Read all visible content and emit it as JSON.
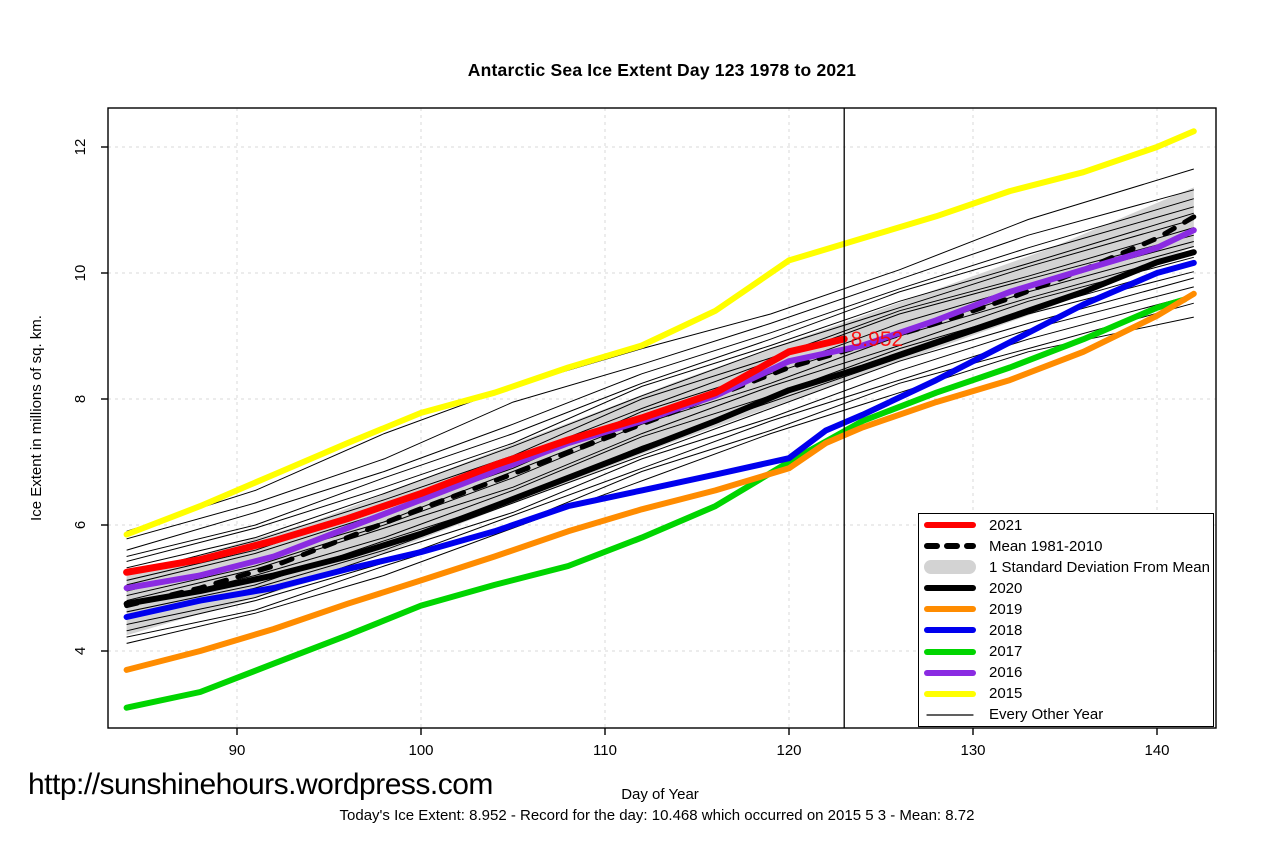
{
  "title": "Antarctic Sea Ice Extent Day 123 1978 to 2021",
  "ylabel": "Ice Extent in millions of sq. km.",
  "footer": {
    "url": "http://sunshinehours.wordpress.com",
    "xlabel": "Day of Year",
    "status": "Today's Ice Extent: 8.952  - Record for the day: 10.468 which occurred on 2015 5 3  - Mean: 8.72"
  },
  "colors": {
    "band": "#D3D3D3",
    "grid": "#D9D9D9",
    "axis": "#000000",
    "annotation_red": "#FF0000"
  },
  "chart_data": {
    "type": "line",
    "title": "Antarctic Sea Ice Extent Day 123 1978 to 2021",
    "xlabel": "Day of Year",
    "ylabel": "Ice Extent in millions of sq. km.",
    "xlim": [
      83,
      143.2
    ],
    "ylim": [
      2.73,
      12.62
    ],
    "xticks": [
      90,
      100,
      110,
      120,
      130,
      140
    ],
    "yticks": [
      4,
      6,
      8,
      10,
      12
    ],
    "grid": "dashed",
    "legend_position": "bottom-right",
    "marker_line_x": 123,
    "annotation": {
      "text": "8.952",
      "x": 123.35,
      "y": 8.95,
      "color": "#FF0000"
    },
    "band": {
      "name": "1 Standard Deviation From Mean",
      "color": "#D3D3D3",
      "days": [
        84,
        94,
        104,
        114,
        124,
        134,
        142
      ],
      "upper": [
        5.19,
        6.04,
        7.17,
        8.29,
        9.32,
        10.37,
        11.36
      ],
      "lower": [
        4.25,
        5.1,
        6.23,
        7.35,
        8.38,
        9.43,
        10.42
      ]
    },
    "mean": {
      "name": "Mean 1981-2010",
      "color": "#000000",
      "style": "dashed",
      "days": [
        84,
        88,
        92,
        96,
        100,
        104,
        108,
        112,
        116,
        120,
        124,
        128,
        132,
        136,
        140,
        142
      ],
      "values": [
        4.72,
        5.0,
        5.35,
        5.8,
        6.26,
        6.7,
        7.15,
        7.6,
        8.05,
        8.5,
        8.85,
        9.2,
        9.6,
        10.05,
        10.55,
        10.89
      ]
    },
    "series": [
      {
        "name": "2015",
        "color": "#FFFF00",
        "width": 6,
        "days": [
          84,
          88,
          92,
          96,
          100,
          104,
          108,
          112,
          116,
          120,
          124,
          128,
          132,
          136,
          140,
          142
        ],
        "values": [
          5.85,
          6.3,
          6.8,
          7.3,
          7.78,
          8.1,
          8.5,
          8.85,
          9.4,
          10.2,
          10.55,
          10.9,
          11.3,
          11.6,
          12.0,
          12.25
        ]
      },
      {
        "name": "2020",
        "color": "#000000",
        "width": 6,
        "days": [
          84,
          88,
          92,
          96,
          100,
          104,
          108,
          112,
          116,
          120,
          124,
          128,
          132,
          136,
          140,
          142
        ],
        "values": [
          4.75,
          4.95,
          5.2,
          5.5,
          5.86,
          6.3,
          6.75,
          7.2,
          7.65,
          8.14,
          8.5,
          8.9,
          9.3,
          9.7,
          10.17,
          10.33
        ]
      },
      {
        "name": "2016",
        "color": "#8A2BE2",
        "width": 6,
        "days": [
          84,
          88,
          92,
          96,
          100,
          104,
          108,
          112,
          116,
          120,
          124,
          128,
          132,
          136,
          140,
          142
        ],
        "values": [
          5.0,
          5.2,
          5.5,
          5.95,
          6.4,
          6.85,
          7.3,
          7.65,
          8.05,
          8.6,
          8.85,
          9.25,
          9.7,
          10.05,
          10.4,
          10.68
        ]
      },
      {
        "name": "2017",
        "color": "#00D500",
        "width": 6,
        "days": [
          84,
          88,
          92,
          96,
          100,
          104,
          108,
          112,
          116,
          120,
          124,
          128,
          132,
          136,
          140,
          141.5
        ],
        "values": [
          3.1,
          3.35,
          3.8,
          4.25,
          4.72,
          5.05,
          5.35,
          5.8,
          6.3,
          7.0,
          7.65,
          8.1,
          8.5,
          8.95,
          9.45,
          9.58
        ]
      },
      {
        "name": "2018",
        "color": "#0000EE",
        "width": 6,
        "days": [
          84,
          88,
          92,
          96,
          100,
          104,
          108,
          112,
          116,
          120,
          122,
          124,
          128,
          132,
          136,
          140,
          142
        ],
        "values": [
          4.54,
          4.8,
          5.0,
          5.3,
          5.57,
          5.9,
          6.3,
          6.55,
          6.8,
          7.06,
          7.5,
          7.75,
          8.3,
          8.9,
          9.5,
          10.0,
          10.16
        ]
      },
      {
        "name": "2019",
        "color": "#FF8C00",
        "width": 6,
        "days": [
          84,
          88,
          92,
          96,
          100,
          104,
          108,
          112,
          116,
          120,
          122,
          124,
          128,
          132,
          136,
          140,
          142
        ],
        "values": [
          3.7,
          4.0,
          4.35,
          4.75,
          5.12,
          5.5,
          5.9,
          6.25,
          6.55,
          6.9,
          7.3,
          7.55,
          7.95,
          8.3,
          8.75,
          9.32,
          9.67
        ]
      },
      {
        "name": "2021",
        "color": "#FF0000",
        "width": 7,
        "days": [
          84,
          88,
          92,
          96,
          100,
          104,
          108,
          112,
          116,
          120,
          123
        ],
        "values": [
          5.25,
          5.45,
          5.75,
          6.1,
          6.5,
          6.95,
          7.35,
          7.7,
          8.1,
          8.75,
          8.952
        ]
      }
    ],
    "every_other_year": {
      "name": "Every Other Year",
      "color": "#000000",
      "width": 1,
      "days": [
        84,
        91,
        98,
        105,
        112,
        119,
        126,
        133,
        142
      ],
      "lines": [
        [
          5.9,
          6.55,
          7.45,
          8.2,
          8.8,
          9.35,
          10.05,
          10.85,
          11.65
        ],
        [
          5.78,
          6.35,
          7.05,
          7.95,
          8.55,
          9.2,
          9.9,
          10.6,
          11.32
        ],
        [
          5.6,
          6.2,
          6.85,
          7.6,
          8.4,
          9.05,
          9.75,
          10.4,
          11.18
        ],
        [
          5.5,
          6.0,
          6.75,
          7.45,
          8.25,
          8.95,
          9.7,
          10.3,
          11.05
        ],
        [
          5.42,
          5.95,
          6.6,
          7.3,
          8.2,
          8.85,
          9.55,
          10.15,
          10.95
        ],
        [
          5.32,
          5.8,
          6.5,
          7.25,
          8.05,
          8.8,
          9.45,
          10.1,
          10.85
        ],
        [
          5.22,
          5.75,
          6.4,
          7.1,
          8.0,
          8.65,
          9.4,
          9.95,
          10.72
        ],
        [
          5.12,
          5.6,
          6.3,
          7.05,
          7.85,
          8.6,
          9.35,
          9.9,
          10.6
        ],
        [
          5.05,
          5.55,
          6.2,
          6.9,
          7.8,
          8.45,
          9.2,
          9.8,
          10.5
        ],
        [
          4.95,
          5.45,
          6.05,
          6.85,
          7.65,
          8.4,
          9.05,
          9.7,
          10.42
        ],
        [
          4.88,
          5.35,
          6.0,
          6.75,
          7.6,
          8.25,
          9.0,
          9.6,
          10.33
        ],
        [
          4.8,
          5.3,
          5.95,
          6.6,
          7.45,
          8.2,
          8.85,
          9.55,
          10.25
        ],
        [
          4.7,
          5.2,
          5.8,
          6.55,
          7.4,
          8.05,
          8.8,
          9.4,
          10.15
        ],
        [
          4.62,
          5.05,
          5.75,
          6.4,
          7.25,
          7.95,
          8.65,
          9.35,
          10.02
        ],
        [
          4.52,
          5.0,
          5.6,
          6.35,
          7.1,
          7.85,
          8.6,
          9.2,
          9.92
        ],
        [
          4.42,
          4.85,
          5.55,
          6.2,
          7.05,
          7.7,
          8.45,
          9.1,
          9.78
        ],
        [
          4.32,
          4.8,
          5.4,
          6.15,
          6.9,
          7.65,
          8.3,
          8.95,
          9.65
        ],
        [
          4.22,
          4.65,
          5.35,
          6.0,
          6.85,
          7.5,
          8.25,
          8.8,
          9.52
        ],
        [
          4.12,
          4.6,
          5.2,
          5.95,
          6.7,
          7.45,
          8.1,
          8.75,
          9.3
        ]
      ]
    },
    "legend": {
      "items": [
        {
          "label": "2021",
          "type": "thick",
          "color": "#FF0000"
        },
        {
          "label": "Mean 1981-2010",
          "type": "dashed",
          "color": "#000000"
        },
        {
          "label": "1 Standard Deviation From Mean",
          "type": "band",
          "color": "#D3D3D3"
        },
        {
          "label": "2020",
          "type": "thick",
          "color": "#000000"
        },
        {
          "label": "2019",
          "type": "thick",
          "color": "#FF8C00"
        },
        {
          "label": "2018",
          "type": "thick",
          "color": "#0000EE"
        },
        {
          "label": "2017",
          "type": "thick",
          "color": "#00D500"
        },
        {
          "label": "2016",
          "type": "thick",
          "color": "#8A2BE2"
        },
        {
          "label": "2015",
          "type": "thick",
          "color": "#FFFF00"
        },
        {
          "label": "Every Other Year",
          "type": "thin",
          "color": "#000000"
        }
      ]
    }
  }
}
